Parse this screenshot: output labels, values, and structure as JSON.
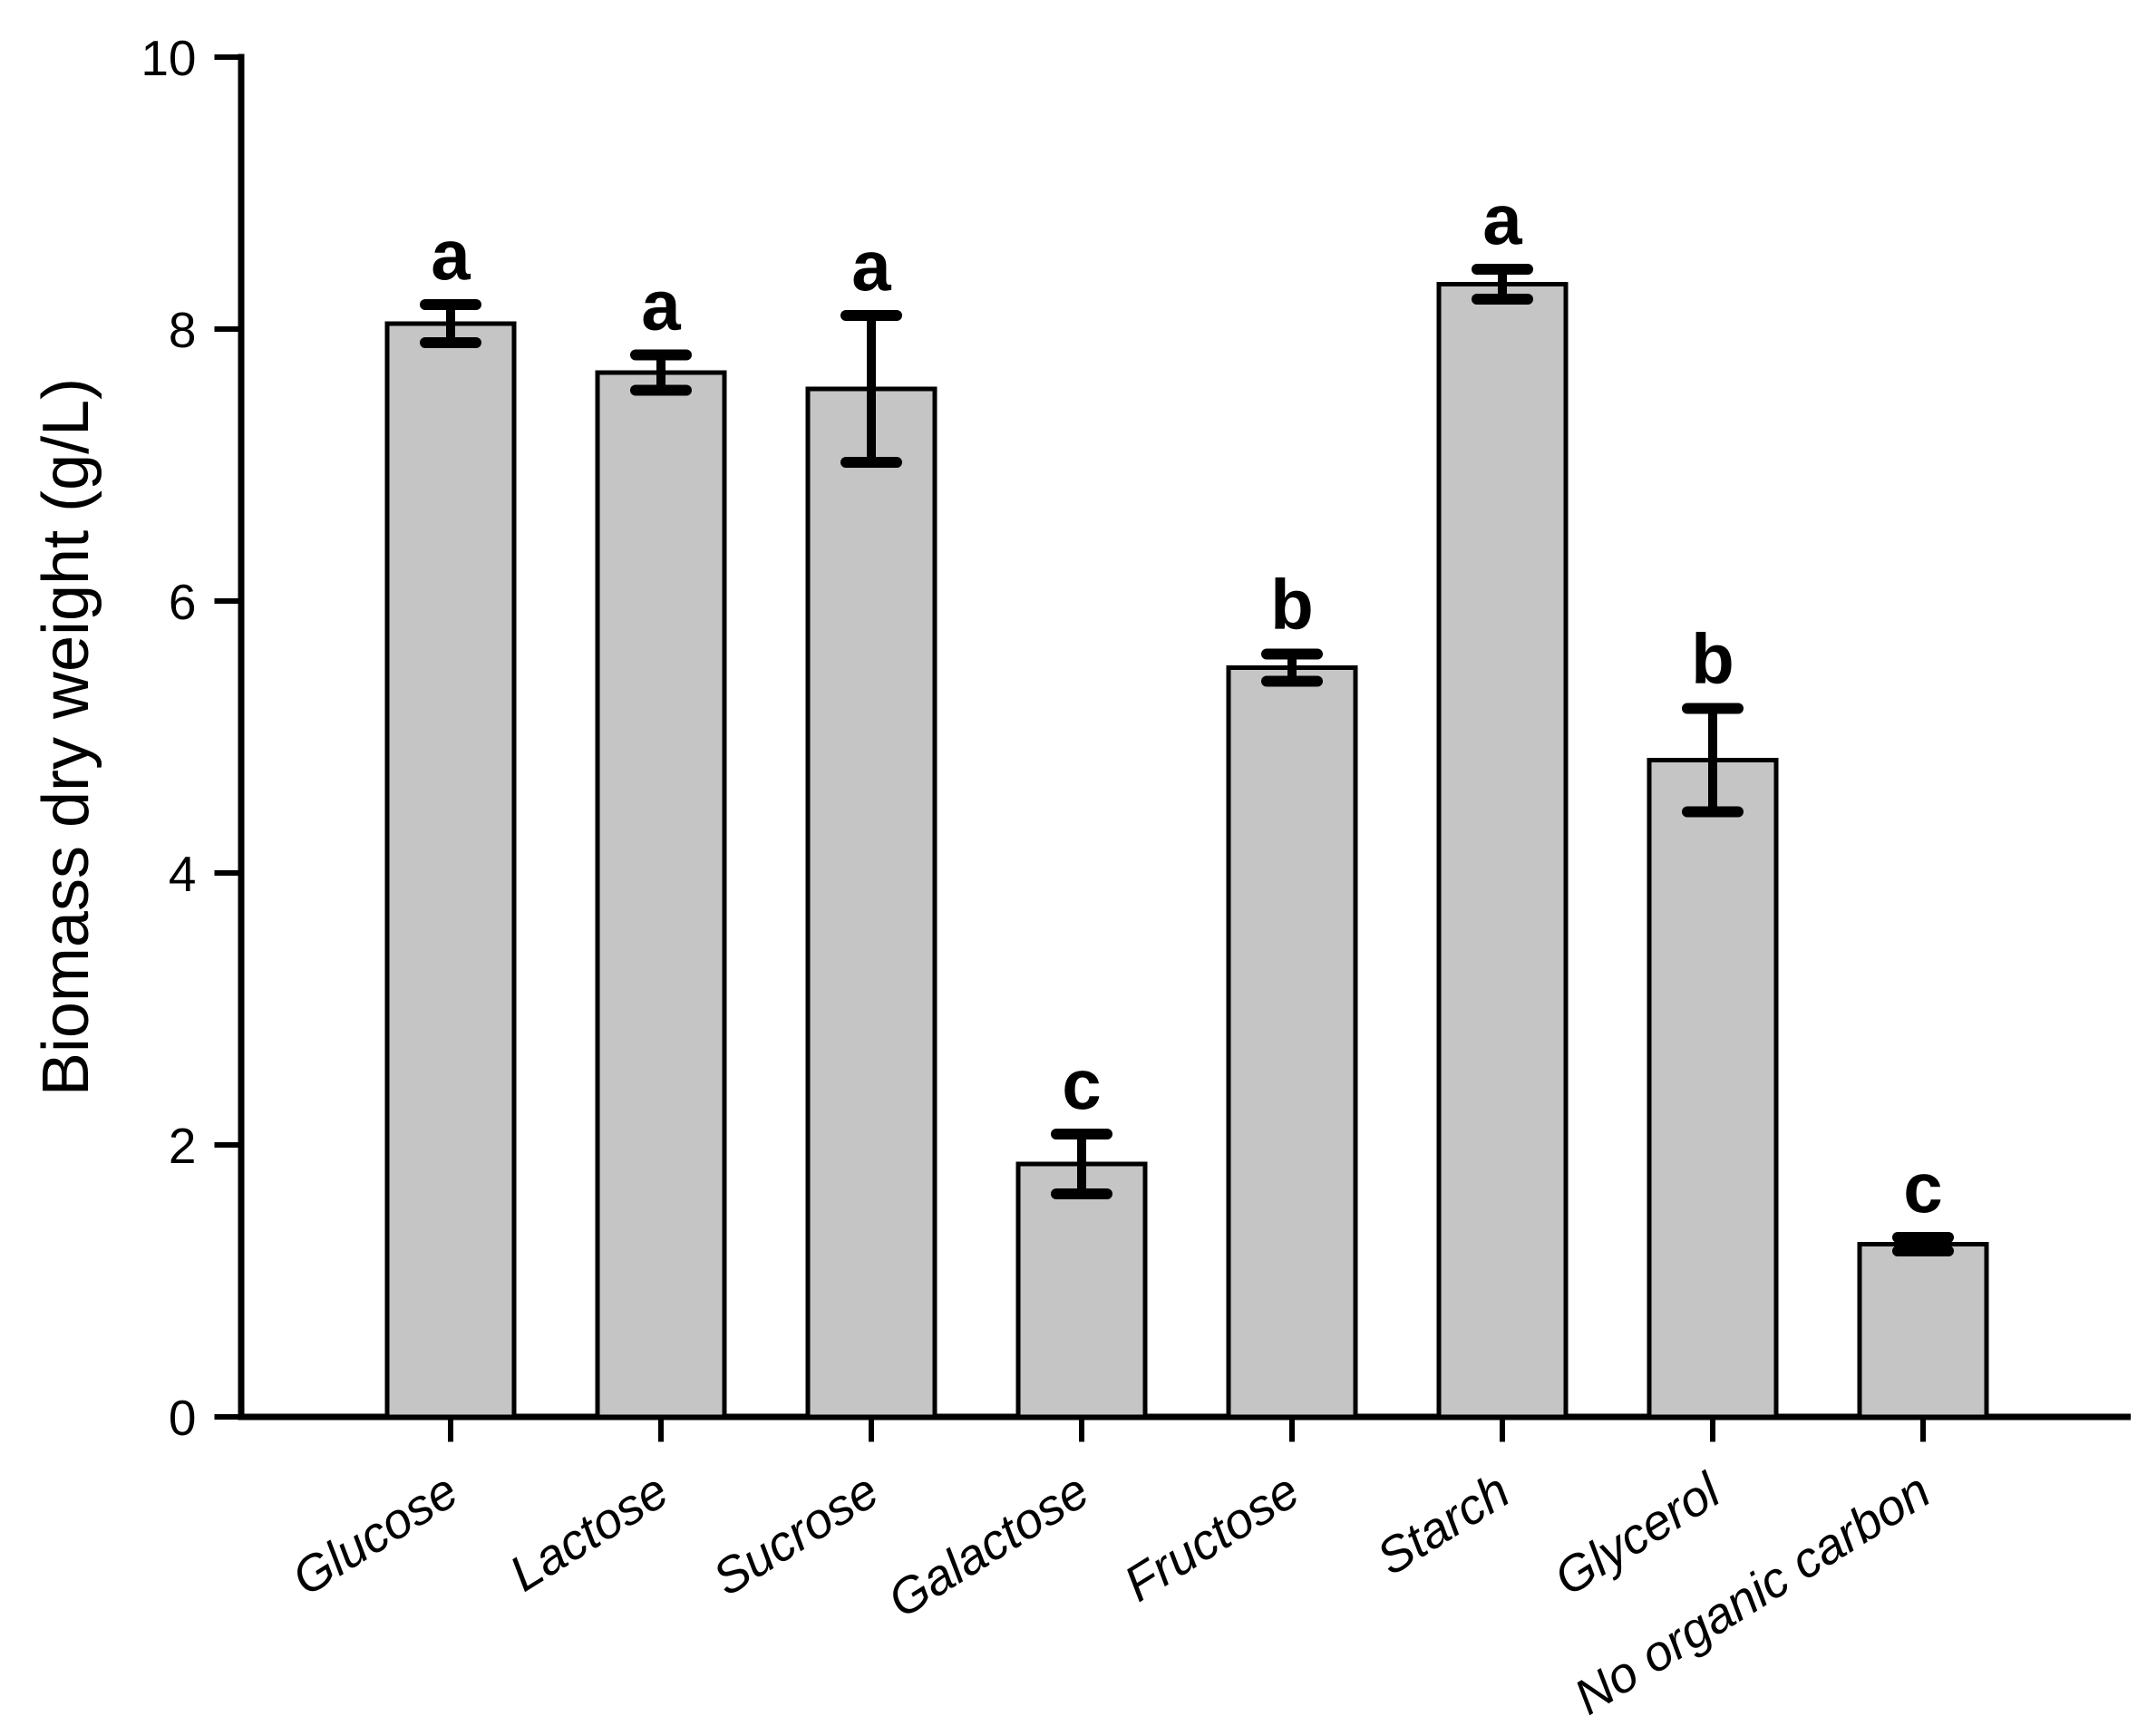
{
  "figure": {
    "background_color": "#ffffff",
    "axis_color": "#000000"
  },
  "chart_data": {
    "type": "bar",
    "title": "",
    "xlabel": "",
    "ylabel": "Biomass dry weight (g/L)",
    "ylim": [
      0,
      10
    ],
    "yticks": [
      0,
      2,
      4,
      6,
      8,
      10
    ],
    "grid": false,
    "legend": null,
    "bar_fill_color": "#c5c5c5",
    "bar_edge_color": "#000000",
    "error_bar_color": "#000000",
    "categories": [
      "Glucose",
      "Lactose",
      "Sucrose",
      "Galactose",
      "Fructose",
      "Starch",
      "Glycerol",
      "No organic carbon"
    ],
    "category_label_style": "italic, rotated 32 degrees",
    "series": [
      {
        "name": "Biomass dry weight (g/L)",
        "values": [
          8.04,
          7.68,
          7.56,
          1.86,
          5.51,
          8.33,
          4.83,
          1.27
        ],
        "errors_plus": [
          0.14,
          0.13,
          0.54,
          0.22,
          0.1,
          0.11,
          0.38,
          0.05
        ],
        "errors_minus": [
          0.14,
          0.13,
          0.54,
          0.22,
          0.1,
          0.11,
          0.38,
          0.05
        ],
        "significance_letters": [
          "a",
          "a",
          "a",
          "c",
          "b",
          "a",
          "b",
          "c"
        ]
      }
    ]
  }
}
